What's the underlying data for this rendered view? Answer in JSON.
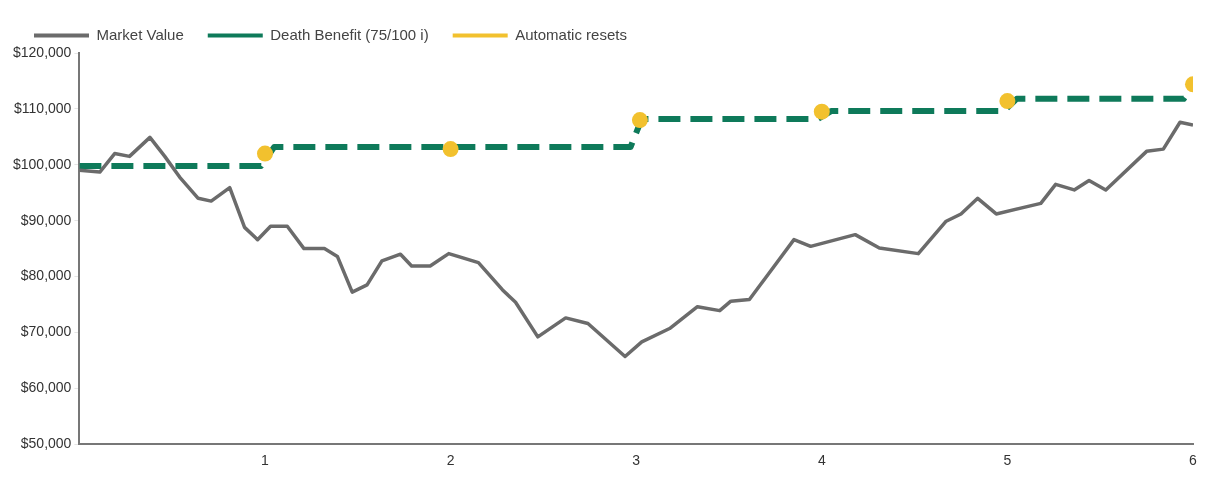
{
  "chart_data": {
    "type": "line",
    "series": [
      {
        "name": "Market Value",
        "color": "#6b6b6b",
        "marker": "none",
        "line_style": "solid",
        "x": [
          0,
          0.11,
          0.19,
          0.27,
          0.38,
          0.46,
          0.54,
          0.64,
          0.71,
          0.81,
          0.89,
          0.96,
          1.03,
          1.12,
          1.21,
          1.32,
          1.39,
          1.47,
          1.55,
          1.63,
          1.73,
          1.79,
          1.89,
          1.99,
          2.15,
          2.28,
          2.35,
          2.47,
          2.62,
          2.74,
          2.94,
          3.03,
          3.18,
          3.33,
          3.45,
          3.51,
          3.61,
          3.85,
          3.94,
          4.18,
          4.31,
          4.52,
          4.67,
          4.75,
          4.84,
          4.94,
          5.18,
          5.26,
          5.36,
          5.44,
          5.53,
          5.75,
          5.84,
          5.93,
          6
        ],
        "values": [
          99000,
          98700,
          102000,
          101500,
          104900,
          101500,
          97800,
          94000,
          93500,
          95900,
          88800,
          86600,
          89000,
          89000,
          85000,
          85000,
          83600,
          77200,
          78500,
          82800,
          84000,
          81900,
          81900,
          84100,
          82500,
          77600,
          75400,
          69200,
          72600,
          71600,
          65700,
          68300,
          70700,
          74600,
          73900,
          75600,
          75900,
          86600,
          85400,
          87500,
          85100,
          84100,
          89900,
          91200,
          94000,
          91200,
          93100,
          96500,
          95500,
          97200,
          95500,
          102400,
          102800,
          107600,
          107100
        ]
      },
      {
        "name": "Death Benefit (75/100 i)",
        "color": "#0e7a5a",
        "marker": "none",
        "line_style": "dashed",
        "x": [
          0,
          0.98,
          1.05,
          2.97,
          3.03,
          3.98,
          4.05,
          4.98,
          5.05,
          5.95,
          6
        ],
        "values": [
          99800,
          99800,
          103200,
          103200,
          108200,
          108200,
          109600,
          109600,
          111800,
          111800,
          114000
        ]
      },
      {
        "name": "Automatic resets",
        "type": "scatter",
        "color": "#f2c12e",
        "marker": "circle",
        "x": [
          1,
          2,
          3.02,
          4,
          5,
          6
        ],
        "values": [
          102000,
          102800,
          108000,
          109500,
          111400,
          114400
        ]
      }
    ],
    "xlim": [
      0,
      6
    ],
    "xticks": [
      1,
      2,
      3,
      4,
      5,
      6
    ],
    "ylim": [
      50000,
      120000
    ],
    "yticks": [
      {
        "value": 50000,
        "label": "$50,000"
      },
      {
        "value": 60000,
        "label": "$60,000"
      },
      {
        "value": 70000,
        "label": "$70,000"
      },
      {
        "value": 80000,
        "label": "$80,000"
      },
      {
        "value": 90000,
        "label": "$90,000"
      },
      {
        "value": 100000,
        "label": "$100,000"
      },
      {
        "value": 110000,
        "label": "$110,000"
      },
      {
        "value": 120000,
        "label": "$120,000"
      }
    ],
    "grid": false,
    "legend": "top"
  }
}
